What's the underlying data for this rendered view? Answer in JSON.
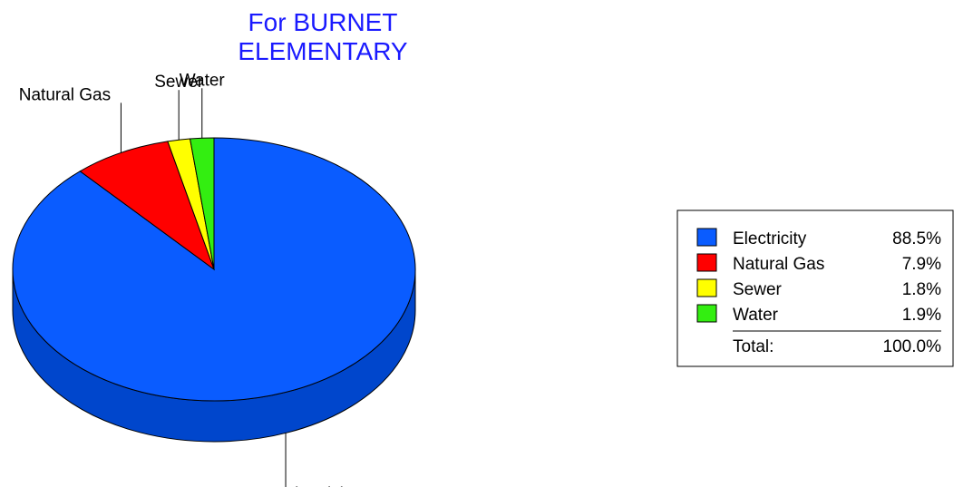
{
  "chart_data": {
    "type": "pie",
    "title_lines": [
      "For BURNET",
      "ELEMENTARY"
    ],
    "title_color": "#1a1aff",
    "slices": [
      {
        "label": "Electricity",
        "value": 88.5,
        "percent": "88.5%",
        "color": "#0a5cff",
        "side_color": "#0046cc"
      },
      {
        "label": "Natural Gas",
        "value": 7.9,
        "percent": "7.9%",
        "color": "#ff0000",
        "side_color": "#c40000"
      },
      {
        "label": "Sewer",
        "value": 1.8,
        "percent": "1.8%",
        "color": "#ffff00",
        "side_color": "#c8c800"
      },
      {
        "label": "Water",
        "value": 1.9,
        "percent": "1.9%",
        "color": "#33ee11",
        "side_color": "#22aa0a"
      }
    ],
    "start_angle": "12 o'clock",
    "direction": "clockwise",
    "legend": {
      "placement": "right",
      "total_label": "Total:",
      "total_value": "100.0%"
    }
  }
}
